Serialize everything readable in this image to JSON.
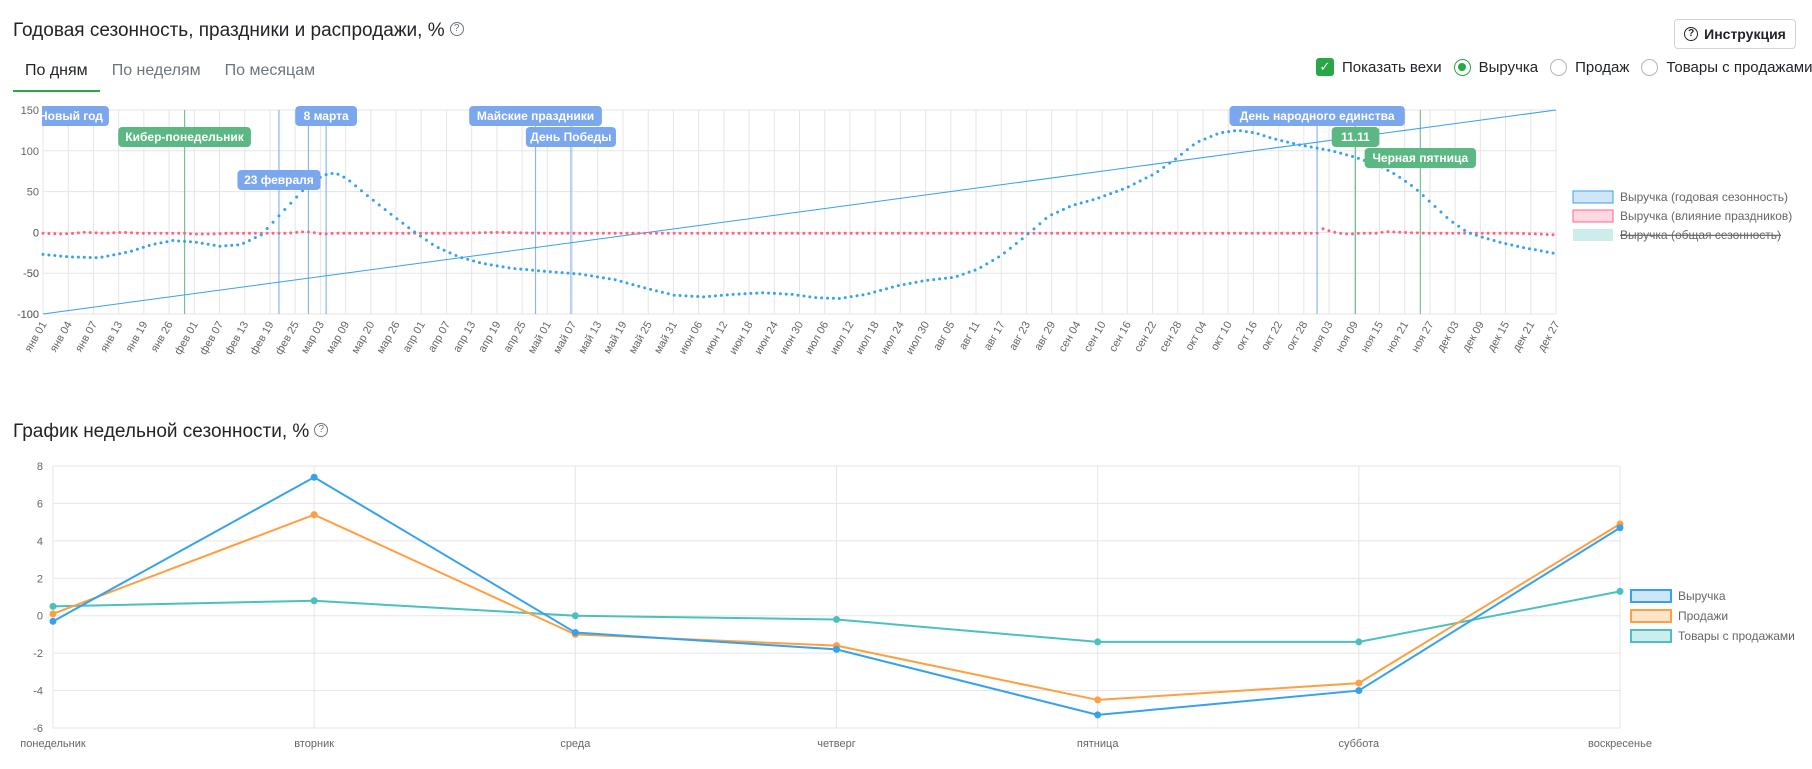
{
  "annual": {
    "title": "Годовая сезонность, праздники и распродажи, %",
    "help_icon": "question-circle-icon",
    "instruction_label": "Инструкция",
    "tabs": [
      {
        "label": "По дням",
        "active": true
      },
      {
        "label": "По неделям",
        "active": false
      },
      {
        "label": "По месяцам",
        "active": false
      }
    ],
    "show_milestones_label": "Показать вехи",
    "show_milestones_checked": true,
    "radios": [
      {
        "label": "Выручка",
        "checked": true
      },
      {
        "label": "Продаж",
        "checked": false
      },
      {
        "label": "Товары с продажами",
        "checked": false
      }
    ],
    "colors": {
      "accent": "#28a745",
      "blue": "#36a2eb",
      "red": "#ff6384",
      "teal": "#4bc0c0",
      "label_blue": "#7ba7ee",
      "label_green": "#5cb882"
    }
  },
  "weekly": {
    "title": "График недельной сезонности, %",
    "help_icon": "question-circle-icon"
  },
  "chart_data": [
    {
      "type": "line",
      "title": "Годовая сезонность, праздники и распродажи, %",
      "ylim": [
        -100,
        150
      ],
      "yticks": [
        150,
        100,
        50,
        0,
        -50,
        -100
      ],
      "x_tick_labels": [
        "янв 01",
        "янв 04",
        "янв 07",
        "янв 13",
        "янв 19",
        "янв 26",
        "фев 01",
        "фев 07",
        "фев 13",
        "фев 19",
        "фев 25",
        "мар 03",
        "мар 09",
        "мар 20",
        "мар 26",
        "апр 01",
        "апр 07",
        "апр 13",
        "апр 19",
        "апр 25",
        "май 01",
        "май 07",
        "май 13",
        "май 19",
        "май 25",
        "май 31",
        "июн 06",
        "июн 12",
        "июн 18",
        "июн 24",
        "июн 30",
        "июл 06",
        "июл 12",
        "июл 18",
        "июл 24",
        "июл 30",
        "авг 05",
        "авг 11",
        "авг 17",
        "авг 23",
        "авг 29",
        "сен 04",
        "сен 10",
        "сен 16",
        "сен 22",
        "сен 28",
        "окт 04",
        "окт 10",
        "окт 16",
        "окт 22",
        "окт 28",
        "ноя 03",
        "ноя 09",
        "ноя 15",
        "ноя 21",
        "ноя 27",
        "дек 03",
        "дек 09",
        "дек 15",
        "дек 21",
        "дек 27"
      ],
      "grid": true,
      "legend_position": "right",
      "series": [
        {
          "name": "Выручка (годовая сезонность)",
          "color": "#36a2eb",
          "hidden": false,
          "points": [
            [
              1,
              -27
            ],
            [
              10,
              -30
            ],
            [
              20,
              -31
            ],
            [
              30,
              -24
            ],
            [
              38,
              -15
            ],
            [
              45,
              -10
            ],
            [
              53,
              -12
            ],
            [
              61,
              -17
            ],
            [
              68,
              -15
            ],
            [
              75,
              -3
            ],
            [
              83,
              28
            ],
            [
              90,
              55
            ],
            [
              96,
              70
            ],
            [
              100,
              73
            ],
            [
              104,
              66
            ],
            [
              110,
              48
            ],
            [
              118,
              25
            ],
            [
              126,
              3
            ],
            [
              134,
              -17
            ],
            [
              142,
              -30
            ],
            [
              150,
              -38
            ],
            [
              160,
              -44
            ],
            [
              172,
              -48
            ],
            [
              183,
              -51
            ],
            [
              195,
              -58
            ],
            [
              205,
              -68
            ],
            [
              215,
              -77
            ],
            [
              225,
              -79
            ],
            [
              235,
              -76
            ],
            [
              245,
              -74
            ],
            [
              255,
              -76
            ],
            [
              263,
              -80
            ],
            [
              271,
              -81
            ],
            [
              280,
              -76
            ],
            [
              290,
              -66
            ],
            [
              300,
              -59
            ],
            [
              310,
              -55
            ],
            [
              318,
              -45
            ],
            [
              326,
              -28
            ],
            [
              334,
              -5
            ],
            [
              342,
              20
            ],
            [
              350,
              33
            ],
            [
              358,
              41
            ],
            [
              368,
              54
            ],
            [
              378,
              72
            ],
            [
              385,
              90
            ],
            [
              392,
              110
            ],
            [
              400,
              122
            ],
            [
              406,
              125
            ],
            [
              412,
              122
            ],
            [
              418,
              115
            ],
            [
              426,
              108
            ],
            [
              432,
              104
            ],
            [
              438,
              100
            ],
            [
              446,
              92
            ],
            [
              454,
              82
            ],
            [
              460,
              70
            ],
            [
              466,
              55
            ],
            [
              472,
              35
            ],
            [
              478,
              15
            ],
            [
              484,
              0
            ],
            [
              490,
              -7
            ],
            [
              496,
              -13
            ],
            [
              502,
              -18
            ],
            [
              508,
              -22
            ],
            [
              514,
              -26
            ]
          ]
        },
        {
          "name": "Выручка (влияние праздников)",
          "color": "#ff6384",
          "hidden": false,
          "points": [
            [
              1,
              -1
            ],
            [
              8,
              -2
            ],
            [
              15,
              0
            ],
            [
              22,
              -1
            ],
            [
              28,
              0
            ],
            [
              34,
              -1
            ],
            [
              41,
              -1
            ],
            [
              49,
              -1
            ],
            [
              52,
              -2
            ],
            [
              58,
              -2
            ],
            [
              64,
              -1
            ],
            [
              70,
              -1
            ],
            [
              78,
              -1
            ],
            [
              84,
              -1
            ],
            [
              90,
              1
            ],
            [
              92,
              0
            ],
            [
              96,
              -2
            ],
            [
              100,
              -1
            ],
            [
              110,
              -1
            ],
            [
              140,
              -1
            ],
            [
              155,
              0
            ],
            [
              170,
              -1
            ],
            [
              200,
              -1
            ],
            [
              250,
              -1
            ],
            [
              300,
              -1
            ],
            [
              350,
              -1
            ],
            [
              380,
              -1
            ],
            [
              408,
              -1
            ],
            [
              423,
              -1
            ],
            [
              433,
              -1
            ],
            [
              434,
              6
            ],
            [
              436,
              3
            ],
            [
              440,
              -1
            ],
            [
              444,
              -2
            ],
            [
              448,
              -1
            ],
            [
              454,
              -1
            ],
            [
              456,
              1
            ],
            [
              462,
              0
            ],
            [
              470,
              -1
            ],
            [
              480,
              -1
            ],
            [
              490,
              -1
            ],
            [
              500,
              -1
            ],
            [
              508,
              -2
            ],
            [
              514,
              -3
            ]
          ]
        },
        {
          "name": "Выручка (общая сезонность)",
          "color": "#4bc0c0",
          "hidden": true,
          "points": []
        },
        {
          "name": "trend",
          "color": "#36a2eb",
          "hidden": false,
          "points": [
            [
              1,
              -100
            ],
            [
              514,
              150
            ]
          ]
        }
      ],
      "milestones": [
        {
          "label": "Новый год",
          "day": 1,
          "color": "#7ba7ee",
          "row": 1
        },
        {
          "label": "Кибер-понедельник",
          "day": 49,
          "color": "#5cb882",
          "row": 2
        },
        {
          "label": "23 февраля",
          "day": 81,
          "color": "#7ba7ee",
          "row": 4
        },
        {
          "label": "8 марта",
          "day": 97,
          "color": "#7ba7ee",
          "row": 1
        },
        {
          "label": "Майские праздники",
          "day": 168,
          "color": "#7ba7ee",
          "row": 1
        },
        {
          "label": "День Победы",
          "day": 180,
          "color": "#7ba7ee",
          "row": 2
        },
        {
          "label": "День народного единства",
          "day": 433,
          "color": "#7ba7ee",
          "row": 1
        },
        {
          "label": "11.11",
          "day": 446,
          "color": "#5cb882",
          "row": 2
        },
        {
          "label": "Черная пятница",
          "day": 468,
          "color": "#5cb882",
          "row": 3
        }
      ],
      "milestone_lines": [
        {
          "day": 49,
          "color": "#5cb882"
        },
        {
          "day": 81,
          "color": "#7ba7ee"
        },
        {
          "day": 91,
          "color": "#7ba7ee"
        },
        {
          "day": 97,
          "color": "#7ba7ee"
        },
        {
          "day": 168,
          "color": "#7ba7ee"
        },
        {
          "day": 180,
          "color": "#7ba7ee"
        },
        {
          "day": 433,
          "color": "#7ba7ee"
        },
        {
          "day": 446,
          "color": "#5cb882"
        },
        {
          "day": 468,
          "color": "#5cb882"
        }
      ]
    },
    {
      "type": "line",
      "title": "График недельной сезонности, %",
      "categories": [
        "понедельник",
        "вторник",
        "среда",
        "четверг",
        "пятница",
        "суббота",
        "воскресенье"
      ],
      "ylim": [
        -6,
        8
      ],
      "yticks": [
        8,
        6,
        4,
        2,
        0,
        -2,
        -4,
        -6
      ],
      "grid": true,
      "legend_position": "right",
      "series": [
        {
          "name": "Выручка",
          "color": "#36a2eb",
          "values": [
            -0.3,
            7.4,
            -0.9,
            -1.8,
            -5.3,
            -4.0,
            4.7
          ]
        },
        {
          "name": "Продажи",
          "color": "#ff9f40",
          "values": [
            0.1,
            5.4,
            -1.0,
            -1.6,
            -4.5,
            -3.6,
            4.9
          ]
        },
        {
          "name": "Товары с продажами",
          "color": "#4bc0c0",
          "values": [
            0.5,
            0.8,
            0.0,
            -0.2,
            -1.4,
            -1.4,
            1.3
          ]
        }
      ]
    }
  ]
}
